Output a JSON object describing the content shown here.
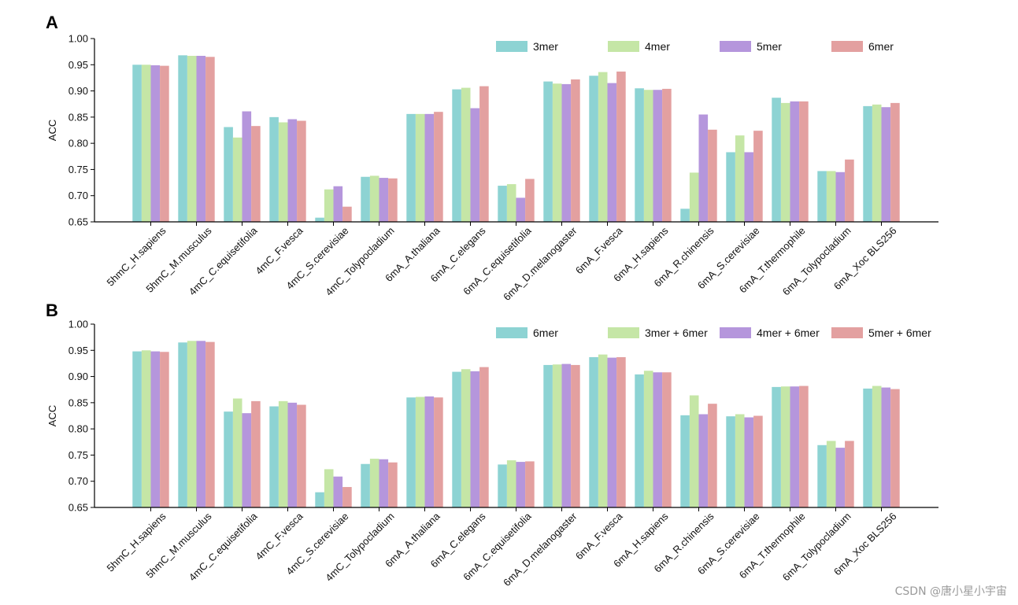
{
  "colors": {
    "c1": "#8dd3d3",
    "c2": "#c5e6a6",
    "c3": "#b596dc",
    "c4": "#e3a0a0"
  },
  "watermark": "CSDN @唐小星小宇宙",
  "chart_data": [
    {
      "panel": "A",
      "type": "bar",
      "ylabel": "ACC",
      "ylim": [
        0.65,
        1.0
      ],
      "yticks": [
        "0.65",
        "0.70",
        "0.75",
        "0.80",
        "0.85",
        "0.90",
        "0.95",
        "1.00"
      ],
      "legend_position": "top-right",
      "categories": [
        "5hmC_H.sapiens",
        "5hmC_M.musculus",
        "4mC_C.equisetifolia",
        "4mC_F.vesca",
        "4mC_S.cerevisiae",
        "4mC_Tolypocladium",
        "6mA_A.thaliana",
        "6mA_C.elegans",
        "6mA_C.equisetifolia",
        "6mA_D.melanogaster",
        "6mA_F.vesca",
        "6mA_H.sapiens",
        "6mA_R.chinensis",
        "6mA_S.cerevisiae",
        "6mA_T.thermophile",
        "6mA_Tolypocladium",
        "6mA_Xoc BLS256"
      ],
      "series": [
        {
          "name": "3mer",
          "values": [
            0.95,
            0.968,
            0.831,
            0.85,
            0.658,
            0.736,
            0.856,
            0.903,
            0.719,
            0.918,
            0.929,
            0.905,
            0.675,
            0.783,
            0.887,
            0.747,
            0.871
          ]
        },
        {
          "name": "4mer",
          "values": [
            0.95,
            0.967,
            0.811,
            0.84,
            0.712,
            0.738,
            0.856,
            0.906,
            0.722,
            0.914,
            0.936,
            0.902,
            0.744,
            0.815,
            0.877,
            0.747,
            0.874
          ]
        },
        {
          "name": "5mer",
          "values": [
            0.949,
            0.967,
            0.861,
            0.846,
            0.718,
            0.734,
            0.856,
            0.867,
            0.696,
            0.913,
            0.915,
            0.902,
            0.855,
            0.783,
            0.88,
            0.745,
            0.869
          ]
        },
        {
          "name": "6mer",
          "values": [
            0.948,
            0.965,
            0.833,
            0.843,
            0.679,
            0.733,
            0.86,
            0.909,
            0.732,
            0.922,
            0.937,
            0.904,
            0.826,
            0.824,
            0.88,
            0.769,
            0.877
          ]
        }
      ]
    },
    {
      "panel": "B",
      "type": "bar",
      "ylabel": "ACC",
      "ylim": [
        0.65,
        1.0
      ],
      "yticks": [
        "0.65",
        "0.70",
        "0.75",
        "0.80",
        "0.85",
        "0.90",
        "0.95",
        "1.00"
      ],
      "legend_position": "top-right",
      "categories": [
        "5hmC_H.sapiens",
        "5hmC_M.musculus",
        "4mC_C.equisetifolia",
        "4mC_F.vesca",
        "4mC_S.cerevisiae",
        "4mC_Tolypocladium",
        "6mA_A.thaliana",
        "6mA_C.elegans",
        "6mA_C.equisetifolia",
        "6mA_D.melanogaster",
        "6mA_F.vesca",
        "6mA_H.sapiens",
        "6mA_R.chinensis",
        "6mA_S.cerevisiae",
        "6mA_T.thermophile",
        "6mA_Tolypocladium",
        "6mA_Xoc BLS256"
      ],
      "series": [
        {
          "name": "6mer",
          "values": [
            0.948,
            0.965,
            0.833,
            0.843,
            0.679,
            0.733,
            0.86,
            0.909,
            0.732,
            0.922,
            0.937,
            0.904,
            0.826,
            0.824,
            0.88,
            0.769,
            0.877
          ]
        },
        {
          "name": "3mer + 6mer",
          "values": [
            0.95,
            0.968,
            0.858,
            0.853,
            0.723,
            0.743,
            0.861,
            0.914,
            0.74,
            0.923,
            0.942,
            0.911,
            0.864,
            0.828,
            0.881,
            0.777,
            0.882
          ]
        },
        {
          "name": "4mer + 6mer",
          "values": [
            0.948,
            0.968,
            0.83,
            0.85,
            0.709,
            0.742,
            0.862,
            0.91,
            0.737,
            0.924,
            0.936,
            0.908,
            0.828,
            0.822,
            0.881,
            0.764,
            0.879
          ]
        },
        {
          "name": "5mer + 6mer",
          "values": [
            0.947,
            0.966,
            0.853,
            0.846,
            0.689,
            0.736,
            0.86,
            0.918,
            0.738,
            0.922,
            0.937,
            0.908,
            0.848,
            0.825,
            0.882,
            0.777,
            0.876
          ]
        }
      ]
    }
  ]
}
